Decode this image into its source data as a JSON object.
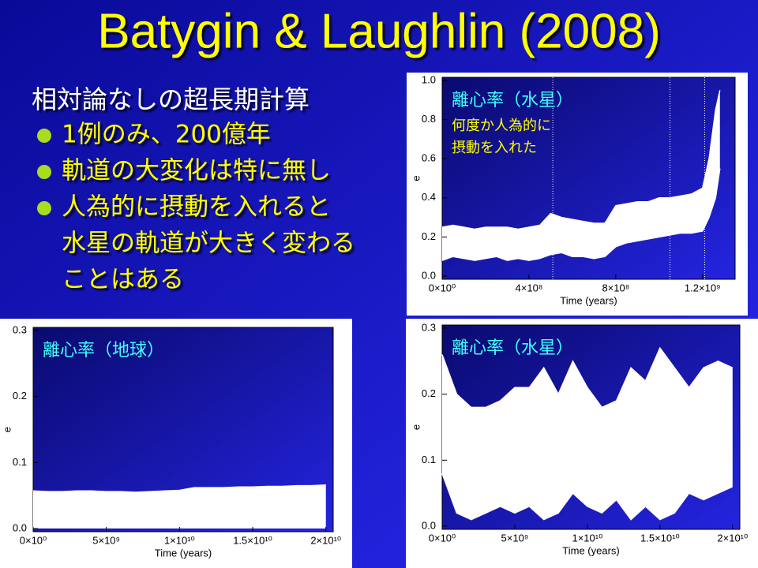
{
  "slide": {
    "title": "Batygin & Laughlin (2008)",
    "heading": "相対論なしの超長期計算",
    "bullets": [
      [
        "1例のみ、200億年"
      ],
      [
        "軌道の大変化は特に無し"
      ],
      [
        "人為的に摂動を入れると",
        "水星の軌道が大きく変わる",
        "ことはある"
      ]
    ]
  },
  "chart_data": [
    {
      "type": "band",
      "annotation": "離心率（水星）",
      "note": [
        "何度か人為的に",
        "摂動を入れた"
      ],
      "x_label": "Time (years)",
      "y_label": "e",
      "color": "#ffffff",
      "x": [
        0,
        50000000.0,
        100000000.0,
        150000000.0,
        200000000.0,
        250000000.0,
        300000000.0,
        350000000.0,
        400000000.0,
        450000000.0,
        500000000.0,
        550000000.0,
        600000000.0,
        650000000.0,
        700000000.0,
        750000000.0,
        800000000.0,
        850000000.0,
        900000000.0,
        950000000.0,
        1000000000.0,
        1050000000.0,
        1100000000.0,
        1150000000.0,
        1200000000.0,
        1230000000.0,
        1260000000.0,
        1280000000.0
      ],
      "series": [
        {
          "values": [
            0.25,
            0.26,
            0.25,
            0.24,
            0.25,
            0.25,
            0.25,
            0.24,
            0.25,
            0.26,
            0.32,
            0.3,
            0.29,
            0.28,
            0.27,
            0.27,
            0.36,
            0.37,
            0.38,
            0.38,
            0.4,
            0.4,
            0.41,
            0.42,
            0.45,
            0.6,
            0.85,
            0.95
          ]
        },
        {
          "values": [
            0.08,
            0.1,
            0.09,
            0.08,
            0.09,
            0.1,
            0.08,
            0.09,
            0.08,
            0.09,
            0.11,
            0.12,
            0.1,
            0.1,
            0.09,
            0.1,
            0.15,
            0.17,
            0.18,
            0.19,
            0.2,
            0.21,
            0.22,
            0.22,
            0.23,
            0.3,
            0.4,
            0.55
          ]
        }
      ],
      "vlines": [
        510000000.0,
        1050000000.0,
        1210000000.0
      ],
      "xlim": [
        0,
        1350000000.0
      ],
      "ylim": [
        0,
        1
      ],
      "xticks": [
        {
          "value": 0,
          "label": "0×10⁰"
        },
        {
          "value": 400000000.0,
          "label": "4×10⁸"
        },
        {
          "value": 800000000.0,
          "label": "8×10⁸"
        },
        {
          "value": 1200000000.0,
          "label": "1.2×10⁹"
        }
      ],
      "yticks": [
        {
          "value": 0,
          "label": "0.0"
        },
        0.2,
        0.4,
        0.6,
        0.8,
        {
          "value": 1,
          "label": "1.0"
        }
      ]
    },
    {
      "type": "band",
      "annotation": "離心率（地球）",
      "x_label": "Time (years)",
      "y_label": "e",
      "color": "#ffffff",
      "x": [
        0,
        1000000000.0,
        2000000000.0,
        3000000000.0,
        4000000000.0,
        5000000000.0,
        6000000000.0,
        7000000000.0,
        8000000000.0,
        9000000000.0,
        10000000000.0,
        11000000000.0,
        12000000000.0,
        13000000000.0,
        14000000000.0,
        15000000000.0,
        16000000000.0,
        17000000000.0,
        18000000000.0,
        19000000000.0,
        20000000000.0
      ],
      "series": [
        {
          "values": [
            0.057,
            0.056,
            0.056,
            0.057,
            0.057,
            0.056,
            0.056,
            0.055,
            0.056,
            0.057,
            0.058,
            0.062,
            0.062,
            0.062,
            0.063,
            0.063,
            0.064,
            0.064,
            0.065,
            0.065,
            0.066
          ]
        },
        {
          "values": [
            0.001,
            0.001,
            0.001,
            0.001,
            0.001,
            0.001,
            0.001,
            0.001,
            0.001,
            0.001,
            0.001,
            0.001,
            0.001,
            0.001,
            0.001,
            0.001,
            0.001,
            0.001,
            0.001,
            0.001,
            0.001
          ]
        }
      ],
      "xlim": [
        0,
        20500000000.0
      ],
      "ylim": [
        0,
        0.3
      ],
      "xticks": [
        {
          "value": 0,
          "label": "0×10⁰"
        },
        {
          "value": 5000000000.0,
          "label": "5×10⁹"
        },
        {
          "value": 10000000000.0,
          "label": "1×10¹⁰"
        },
        {
          "value": 15000000000.0,
          "label": "1.5×10¹⁰"
        },
        {
          "value": 20000000000.0,
          "label": "2×10¹⁰"
        }
      ],
      "yticks": [
        {
          "value": 0,
          "label": "0.0"
        },
        0.1,
        0.2,
        0.3
      ]
    },
    {
      "type": "band",
      "annotation": "離心率（水星）",
      "x_label": "Time (years)",
      "y_label": "e",
      "color": "#ffffff",
      "x": [
        0,
        1000000000.0,
        2000000000.0,
        3000000000.0,
        4000000000.0,
        5000000000.0,
        6000000000.0,
        7000000000.0,
        8000000000.0,
        9000000000.0,
        10000000000.0,
        11000000000.0,
        12000000000.0,
        13000000000.0,
        14000000000.0,
        15000000000.0,
        16000000000.0,
        17000000000.0,
        18000000000.0,
        19000000000.0,
        20000000000.0
      ],
      "series": [
        {
          "values": [
            0.26,
            0.2,
            0.18,
            0.18,
            0.19,
            0.21,
            0.21,
            0.24,
            0.2,
            0.25,
            0.21,
            0.18,
            0.19,
            0.24,
            0.22,
            0.27,
            0.24,
            0.21,
            0.24,
            0.25,
            0.24
          ]
        },
        {
          "values": [
            0.08,
            0.02,
            0.01,
            0.02,
            0.03,
            0.02,
            0.03,
            0.01,
            0.02,
            0.05,
            0.03,
            0.02,
            0.04,
            0.01,
            0.03,
            0.01,
            0.02,
            0.05,
            0.04,
            0.05,
            0.06
          ]
        }
      ],
      "xlim": [
        0,
        20500000000.0
      ],
      "ylim": [
        0,
        0.3
      ],
      "xticks": [
        {
          "value": 0,
          "label": "0×10⁰"
        },
        {
          "value": 5000000000.0,
          "label": "5×10⁹"
        },
        {
          "value": 10000000000.0,
          "label": "1×10¹⁰"
        },
        {
          "value": 15000000000.0,
          "label": "1.5×10¹⁰"
        },
        {
          "value": 20000000000.0,
          "label": "2×10¹⁰"
        }
      ],
      "yticks": [
        {
          "value": 0,
          "label": "0.0"
        },
        0.1,
        0.2,
        0.3
      ]
    }
  ]
}
